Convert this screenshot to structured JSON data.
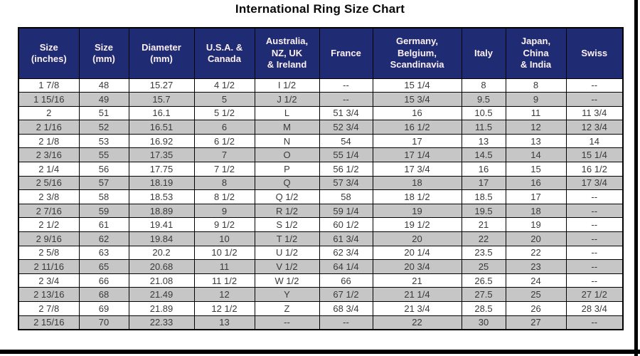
{
  "page": {
    "title": "International Ring Size Chart"
  },
  "colors": {
    "header_bg": "#1f2c74",
    "header_text": "#fdf0f0",
    "row_bg": "#ffffff",
    "row_alt_bg": "#c6c6c6",
    "cell_text": "#3a3a3a",
    "border": "#000000",
    "frame": "#000000"
  },
  "chart_data": {
    "type": "table",
    "title": "International Ring Size Chart",
    "columns": [
      "Size (inches)",
      "Size (mm)",
      "Diameter (mm)",
      "U.S.A. & Canada",
      "Australia, NZ, UK & Ireland",
      "France",
      "Germany, Belgium, Scandinavia",
      "Italy",
      "Japan, China & India",
      "Swiss"
    ],
    "columns_display": [
      "Size\n(inches)",
      "Size\n(mm)",
      "Diameter\n(mm)",
      "U.S.A. &\nCanada",
      "Australia,\nNZ, UK\n& Ireland",
      "France",
      "Germany,\nBelgium,\nScandinavia",
      "Italy",
      "Japan,\nChina\n& India",
      "Swiss"
    ],
    "rows": [
      [
        "1 7/8",
        "48",
        "15.27",
        "4 1/2",
        "I 1/2",
        "--",
        "15 1/4",
        "8",
        "8",
        "--"
      ],
      [
        "1 15/16",
        "49",
        "15.7",
        "5",
        "J 1/2",
        "--",
        "15 3/4",
        "9.5",
        "9",
        "--"
      ],
      [
        "2",
        "51",
        "16.1",
        "5 1/2",
        "L",
        "51 3/4",
        "16",
        "10.5",
        "11",
        "11 3/4"
      ],
      [
        "2 1/16",
        "52",
        "16.51",
        "6",
        "M",
        "52 3/4",
        "16 1/2",
        "11.5",
        "12",
        "12 3/4"
      ],
      [
        "2 1/8",
        "53",
        "16.92",
        "6 1/2",
        "N",
        "54",
        "17",
        "13",
        "13",
        "14"
      ],
      [
        "2 3/16",
        "55",
        "17.35",
        "7",
        "O",
        "55 1/4",
        "17 1/4",
        "14.5",
        "14",
        "15 1/4"
      ],
      [
        "2 1/4",
        "56",
        "17.75",
        "7 1/2",
        "P",
        "56 1/2",
        "17 3/4",
        "16",
        "15",
        "16 1/2"
      ],
      [
        "2 5/16",
        "57",
        "18.19",
        "8",
        "Q",
        "57 3/4",
        "18",
        "17",
        "16",
        "17 3/4"
      ],
      [
        "2 3/8",
        "58",
        "18.53",
        "8 1/2",
        "Q 1/2",
        "58",
        "18 1/2",
        "18.5",
        "17",
        "--"
      ],
      [
        "2 7/16",
        "59",
        "18.89",
        "9",
        "R 1/2",
        "59 1/4",
        "19",
        "19.5",
        "18",
        "--"
      ],
      [
        "2 1/2",
        "61",
        "19.41",
        "9 1/2",
        "S 1/2",
        "60 1/2",
        "19 1/2",
        "21",
        "19",
        "--"
      ],
      [
        "2 9/16",
        "62",
        "19.84",
        "10",
        "T 1/2",
        "61 3/4",
        "20",
        "22",
        "20",
        "--"
      ],
      [
        "2 5/8",
        "63",
        "20.2",
        "10 1/2",
        "U 1/2",
        "62 3/4",
        "20 1/4",
        "23.5",
        "22",
        "--"
      ],
      [
        "2 11/16",
        "65",
        "20.68",
        "11",
        "V 1/2",
        "64 1/4",
        "20 3/4",
        "25",
        "23",
        "--"
      ],
      [
        "2 3/4",
        "66",
        "21.08",
        "11 1/2",
        "W 1/2",
        "66",
        "21",
        "26.5",
        "24",
        "--"
      ],
      [
        "2 13/16",
        "68",
        "21.49",
        "12",
        "Y",
        "67 1/2",
        "21 1/4",
        "27.5",
        "25",
        "27 1/2"
      ],
      [
        "2 7/8",
        "69",
        "21.89",
        "12 1/2",
        "Z",
        "68 3/4",
        "21 3/4",
        "28.5",
        "26",
        "28 3/4"
      ],
      [
        "2 15/16",
        "70",
        "22.33",
        "13",
        "--",
        "--",
        "22",
        "30",
        "27",
        "--"
      ]
    ]
  }
}
